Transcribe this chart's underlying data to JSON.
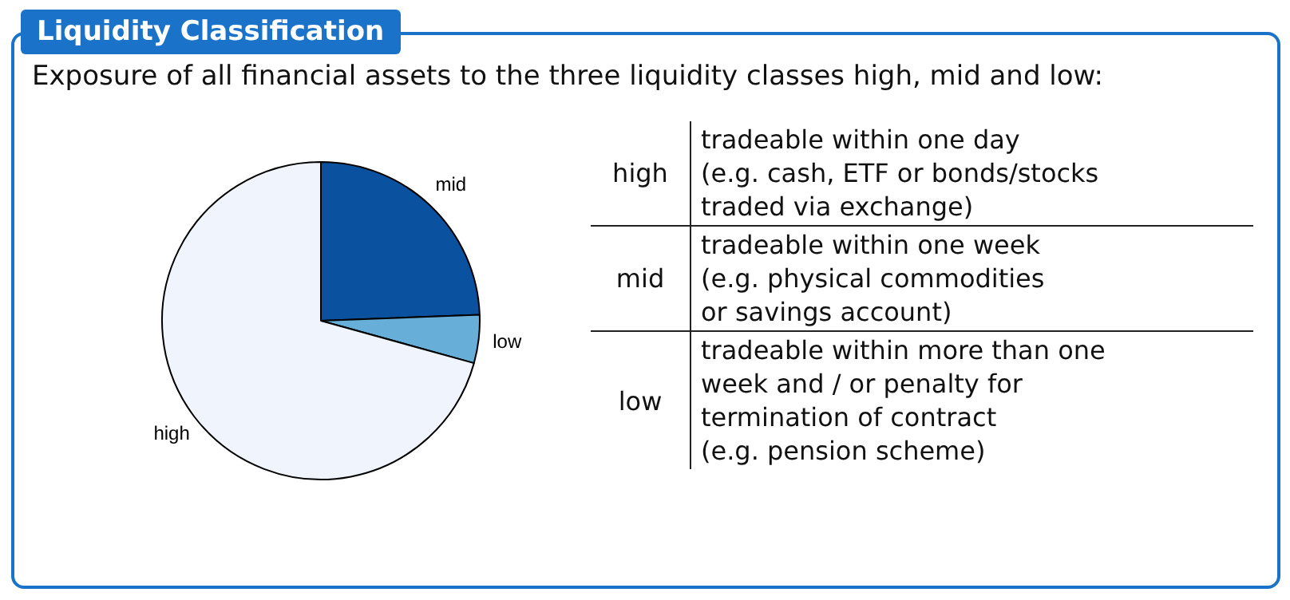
{
  "chart_data": {
    "type": "pie",
    "title": "Liquidity Classification",
    "subtitle": "Exposure of all financial assets to the three liquidity classes high, mid and low:",
    "categories": [
      "mid",
      "low",
      "high"
    ],
    "values": [
      24.4,
      4.9,
      70.7
    ],
    "colors": [
      "#0a52a0",
      "#67aed8",
      "#eff4fd"
    ],
    "legend": false,
    "annotations": [
      "high",
      "tradeable within one day\n(e.g. cash, ETF or bonds/stocks\ntraded via exchange)",
      "mid",
      "tradeable within one week\n(e.g. physical commodities\nor savings account)",
      "low",
      "tradeable within more than one\nweek and / or penalty for\ntermination of contract\n(e.g. pension scheme)"
    ]
  }
}
